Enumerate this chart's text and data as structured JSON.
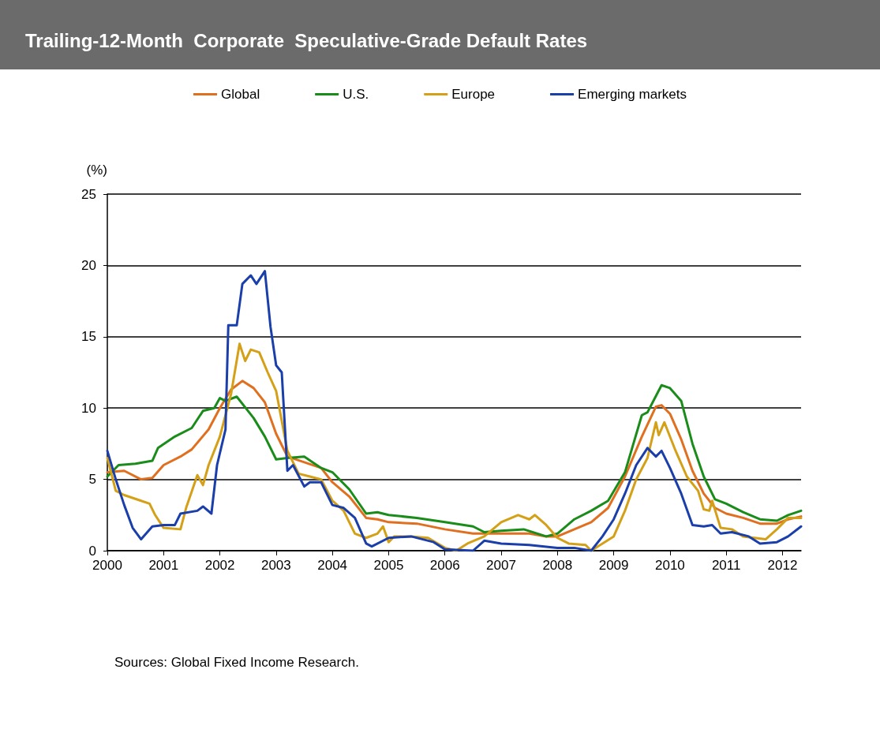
{
  "chart_data": {
    "type": "line",
    "title": "Trailing-12-Month  Corporate  Speculative-Grade Default Rates",
    "ylabel": "(%)",
    "annotations": [
      "Sources: Global Fixed Income Research."
    ],
    "xlim": [
      2000,
      2012.33
    ],
    "xticks": [
      {
        "value": 2000,
        "label": "2000"
      },
      {
        "value": 2001,
        "label": "2001"
      },
      {
        "value": 2002,
        "label": "2002"
      },
      {
        "value": 2003,
        "label": "2003"
      },
      {
        "value": 2004,
        "label": "2004"
      },
      {
        "value": 2005,
        "label": "2005"
      },
      {
        "value": 2006,
        "label": "2006"
      },
      {
        "value": 2007,
        "label": "2007"
      },
      {
        "value": 2008,
        "label": "2008"
      },
      {
        "value": 2009,
        "label": "2009"
      },
      {
        "value": 2010,
        "label": "2010"
      },
      {
        "value": 2011,
        "label": "2011"
      },
      {
        "value": 2012,
        "label": "2012"
      }
    ],
    "ylim": [
      0,
      25
    ],
    "yticks": [
      0,
      5,
      10,
      15,
      20,
      25
    ],
    "grid": "y",
    "legend": "top",
    "marker": "none",
    "line_style": "solid",
    "series": [
      {
        "name": "Global",
        "color": "#e07020",
        "x": [
          2000,
          2000.3,
          2000.6,
          2000.8,
          2001.0,
          2001.3,
          2001.5,
          2001.8,
          2002.0,
          2002.2,
          2002.4,
          2002.6,
          2002.8,
          2003.0,
          2003.2,
          2003.5,
          2003.8,
          2004.0,
          2004.3,
          2004.6,
          2004.8,
          2005.0,
          2005.5,
          2006.0,
          2006.5,
          2007.0,
          2007.5,
          2007.8,
          2008.0,
          2008.3,
          2008.6,
          2008.9,
          2009.2,
          2009.5,
          2009.75,
          2009.85,
          2010.0,
          2010.2,
          2010.4,
          2010.6,
          2010.8,
          2011.0,
          2011.3,
          2011.6,
          2011.9,
          2012.1,
          2012.33
        ],
        "values": [
          5.5,
          5.6,
          5.0,
          5.1,
          6.0,
          6.6,
          7.1,
          8.5,
          10.0,
          11.3,
          11.9,
          11.4,
          10.4,
          8.2,
          6.6,
          6.2,
          5.8,
          4.8,
          3.8,
          2.3,
          2.2,
          2.0,
          1.9,
          1.5,
          1.2,
          1.2,
          1.2,
          1.0,
          1.0,
          1.5,
          2.0,
          3.0,
          5.2,
          8.0,
          10.1,
          10.2,
          9.6,
          7.8,
          5.6,
          4.0,
          3.0,
          2.6,
          2.3,
          1.9,
          1.9,
          2.2,
          2.4
        ]
      },
      {
        "name": "U.S.",
        "color": "#1a8c1a",
        "x": [
          2000,
          2000.2,
          2000.5,
          2000.8,
          2000.9,
          2001.2,
          2001.5,
          2001.7,
          2001.9,
          2002.0,
          2002.1,
          2002.3,
          2002.6,
          2002.8,
          2003.0,
          2003.2,
          2003.5,
          2003.8,
          2004.0,
          2004.3,
          2004.6,
          2004.8,
          2005.0,
          2005.5,
          2006.0,
          2006.5,
          2006.7,
          2007.0,
          2007.4,
          2007.8,
          2008.0,
          2008.3,
          2008.6,
          2008.9,
          2009.2,
          2009.5,
          2009.6,
          2009.85,
          2010.0,
          2010.2,
          2010.4,
          2010.6,
          2010.8,
          2011.0,
          2011.3,
          2011.6,
          2011.9,
          2012.1,
          2012.33
        ],
        "values": [
          5.2,
          6.0,
          6.1,
          6.3,
          7.2,
          8.0,
          8.6,
          9.8,
          10.0,
          10.7,
          10.5,
          10.8,
          9.3,
          8.0,
          6.4,
          6.5,
          6.6,
          5.8,
          5.5,
          4.3,
          2.6,
          2.7,
          2.5,
          2.3,
          2.0,
          1.7,
          1.3,
          1.4,
          1.5,
          1.0,
          1.2,
          2.2,
          2.8,
          3.5,
          5.5,
          9.5,
          9.7,
          11.6,
          11.4,
          10.5,
          7.5,
          5.2,
          3.6,
          3.3,
          2.7,
          2.2,
          2.1,
          2.5,
          2.8
        ]
      },
      {
        "name": "Europe",
        "color": "#d4a017",
        "x": [
          2000,
          2000.15,
          2000.3,
          2000.6,
          2000.75,
          2000.85,
          2001.0,
          2001.3,
          2001.4,
          2001.6,
          2001.7,
          2001.8,
          2002.0,
          2002.2,
          2002.35,
          2002.45,
          2002.55,
          2002.7,
          2002.85,
          2003.0,
          2003.2,
          2003.4,
          2003.6,
          2003.8,
          2004.0,
          2004.2,
          2004.4,
          2004.6,
          2004.8,
          2004.9,
          2005.0,
          2005.1,
          2005.4,
          2005.7,
          2006.0,
          2006.2,
          2006.4,
          2006.7,
          2007.0,
          2007.3,
          2007.5,
          2007.6,
          2007.8,
          2008.0,
          2008.2,
          2008.5,
          2008.6,
          2008.8,
          2009.0,
          2009.2,
          2009.4,
          2009.6,
          2009.75,
          2009.8,
          2009.9,
          2010.1,
          2010.3,
          2010.5,
          2010.6,
          2010.7,
          2010.75,
          2010.9,
          2011.1,
          2011.3,
          2011.7,
          2011.9,
          2012.1,
          2012.33
        ],
        "values": [
          6.5,
          4.2,
          3.9,
          3.5,
          3.3,
          2.5,
          1.6,
          1.5,
          3.0,
          5.3,
          4.6,
          6.0,
          8.0,
          11.0,
          14.5,
          13.3,
          14.1,
          13.9,
          12.5,
          11.2,
          7.0,
          5.4,
          5.2,
          5.0,
          3.5,
          2.8,
          1.2,
          0.9,
          1.2,
          1.7,
          0.6,
          1.0,
          1.0,
          0.9,
          0.2,
          0.0,
          0.5,
          1.0,
          2.0,
          2.5,
          2.2,
          2.5,
          1.8,
          0.9,
          0.5,
          0.4,
          0.0,
          0.5,
          1.0,
          2.8,
          5.0,
          6.5,
          9.0,
          8.1,
          9.0,
          7.0,
          5.2,
          4.2,
          2.9,
          2.8,
          3.5,
          1.6,
          1.5,
          1.0,
          0.8,
          1.5,
          2.3,
          2.3
        ]
      },
      {
        "name": "Emerging markets",
        "color": "#1a3faa",
        "x": [
          2000,
          2000.15,
          2000.3,
          2000.45,
          2000.6,
          2000.8,
          2001.0,
          2001.2,
          2001.3,
          2001.6,
          2001.7,
          2001.85,
          2001.95,
          2002.1,
          2002.15,
          2002.3,
          2002.4,
          2002.55,
          2002.65,
          2002.8,
          2002.9,
          2003.0,
          2003.1,
          2003.2,
          2003.3,
          2003.5,
          2003.6,
          2003.8,
          2004.0,
          2004.2,
          2004.4,
          2004.6,
          2004.7,
          2005.0,
          2005.4,
          2005.8,
          2006.0,
          2006.5,
          2006.7,
          2007.0,
          2007.5,
          2008.0,
          2008.3,
          2008.6,
          2008.8,
          2009.0,
          2009.2,
          2009.4,
          2009.6,
          2009.75,
          2009.85,
          2010.0,
          2010.2,
          2010.4,
          2010.6,
          2010.75,
          2010.9,
          2011.1,
          2011.4,
          2011.6,
          2011.9,
          2012.1,
          2012.33
        ],
        "values": [
          7.0,
          5.0,
          3.2,
          1.6,
          0.8,
          1.7,
          1.8,
          1.8,
          2.6,
          2.8,
          3.1,
          2.6,
          6.0,
          8.5,
          15.8,
          15.8,
          18.7,
          19.3,
          18.7,
          19.6,
          15.7,
          13.0,
          12.5,
          5.6,
          6.0,
          4.5,
          4.8,
          4.8,
          3.2,
          3.0,
          2.3,
          0.5,
          0.3,
          0.9,
          1.0,
          0.6,
          0.1,
          0.0,
          0.7,
          0.5,
          0.4,
          0.2,
          0.2,
          0.0,
          1.0,
          2.2,
          4.0,
          6.0,
          7.2,
          6.6,
          7.0,
          5.8,
          4.0,
          1.8,
          1.7,
          1.8,
          1.2,
          1.3,
          1.0,
          0.5,
          0.6,
          1.0,
          1.7
        ]
      }
    ]
  }
}
